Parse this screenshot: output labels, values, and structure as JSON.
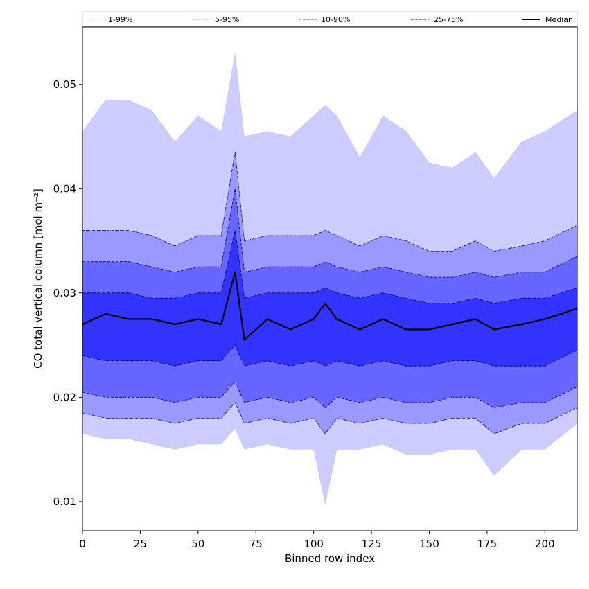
{
  "chart_data": {
    "type": "area",
    "xlabel": "Binned row index",
    "ylabel": "CO total vertical column [mol m⁻²]",
    "xlim": [
      0,
      214
    ],
    "ylim": [
      0.0072,
      0.0555
    ],
    "xticks": [
      0,
      25,
      50,
      75,
      100,
      125,
      150,
      175,
      200
    ],
    "yticks": [
      0.01,
      0.02,
      0.03,
      0.04,
      0.05
    ],
    "ytick_labels": [
      "0.01",
      "0.02",
      "0.03",
      "0.04",
      "0.05"
    ],
    "legend_placement": "top, spanning full width",
    "grid": false,
    "x": [
      0,
      10,
      20,
      30,
      40,
      50,
      60,
      66,
      70,
      80,
      90,
      100,
      105,
      110,
      120,
      130,
      140,
      150,
      160,
      170,
      178,
      190,
      200,
      214
    ],
    "bands": [
      {
        "name": "1-99%",
        "upper": [
          0.0455,
          0.0485,
          0.0485,
          0.0475,
          0.0445,
          0.047,
          0.0455,
          0.053,
          0.045,
          0.0455,
          0.045,
          0.047,
          0.048,
          0.047,
          0.043,
          0.047,
          0.0455,
          0.0425,
          0.042,
          0.0435,
          0.041,
          0.0445,
          0.0455,
          0.0475
        ],
        "lower": [
          0.0165,
          0.016,
          0.016,
          0.0155,
          0.015,
          0.0155,
          0.0155,
          0.017,
          0.015,
          0.0155,
          0.015,
          0.015,
          0.0097,
          0.015,
          0.015,
          0.0155,
          0.0145,
          0.0145,
          0.015,
          0.015,
          0.0125,
          0.015,
          0.015,
          0.0175
        ],
        "color": "#ccccff"
      },
      {
        "name": "5-95%",
        "upper": [
          0.036,
          0.036,
          0.036,
          0.0355,
          0.0345,
          0.0355,
          0.0355,
          0.0435,
          0.035,
          0.0355,
          0.0355,
          0.0355,
          0.036,
          0.0355,
          0.0345,
          0.0355,
          0.035,
          0.034,
          0.034,
          0.035,
          0.034,
          0.0345,
          0.035,
          0.0365
        ],
        "lower": [
          0.0185,
          0.018,
          0.018,
          0.018,
          0.0175,
          0.018,
          0.018,
          0.0195,
          0.0175,
          0.018,
          0.0175,
          0.018,
          0.0165,
          0.018,
          0.0175,
          0.018,
          0.0175,
          0.0175,
          0.018,
          0.018,
          0.0165,
          0.0175,
          0.0175,
          0.019
        ],
        "color": "#9999ff"
      },
      {
        "name": "10-90%",
        "upper": [
          0.033,
          0.033,
          0.033,
          0.0325,
          0.032,
          0.0325,
          0.0325,
          0.04,
          0.032,
          0.0325,
          0.0325,
          0.0325,
          0.033,
          0.0325,
          0.032,
          0.0325,
          0.032,
          0.0315,
          0.0315,
          0.032,
          0.0315,
          0.032,
          0.032,
          0.0335
        ],
        "lower": [
          0.0205,
          0.02,
          0.02,
          0.02,
          0.0195,
          0.02,
          0.02,
          0.0215,
          0.0195,
          0.02,
          0.0195,
          0.02,
          0.019,
          0.02,
          0.0195,
          0.02,
          0.0195,
          0.0195,
          0.02,
          0.02,
          0.019,
          0.0195,
          0.0195,
          0.021
        ],
        "color": "#6666ff"
      },
      {
        "name": "25-75%",
        "upper": [
          0.03,
          0.03,
          0.03,
          0.0295,
          0.0295,
          0.03,
          0.03,
          0.036,
          0.0295,
          0.03,
          0.03,
          0.03,
          0.0305,
          0.03,
          0.0295,
          0.03,
          0.0295,
          0.029,
          0.029,
          0.0295,
          0.029,
          0.0295,
          0.0295,
          0.0305
        ],
        "lower": [
          0.024,
          0.0235,
          0.0235,
          0.0235,
          0.023,
          0.0235,
          0.0235,
          0.025,
          0.023,
          0.0235,
          0.023,
          0.0235,
          0.023,
          0.0235,
          0.023,
          0.0235,
          0.023,
          0.023,
          0.0235,
          0.0235,
          0.023,
          0.023,
          0.023,
          0.0245
        ],
        "color": "#3333ff"
      }
    ],
    "median": {
      "name": "Median",
      "values": [
        0.027,
        0.028,
        0.0275,
        0.0275,
        0.027,
        0.0275,
        0.027,
        0.032,
        0.0255,
        0.0275,
        0.0265,
        0.0275,
        0.029,
        0.0275,
        0.0265,
        0.0275,
        0.0265,
        0.0265,
        0.027,
        0.0275,
        0.0265,
        0.027,
        0.0275,
        0.0285
      ],
      "color": "#000000"
    }
  },
  "legend": {
    "items": [
      {
        "label": "1-99%",
        "color": "#ccccff",
        "style": "dotted"
      },
      {
        "label": "5-95%",
        "color": "#9999ff",
        "style": "dashdot"
      },
      {
        "label": "10-90%",
        "color": "#6666ff",
        "style": "dashed"
      },
      {
        "label": "25-75%",
        "color": "#3333ff",
        "style": "dashed"
      },
      {
        "label": "Median",
        "color": "#000000",
        "style": "solid"
      }
    ]
  }
}
